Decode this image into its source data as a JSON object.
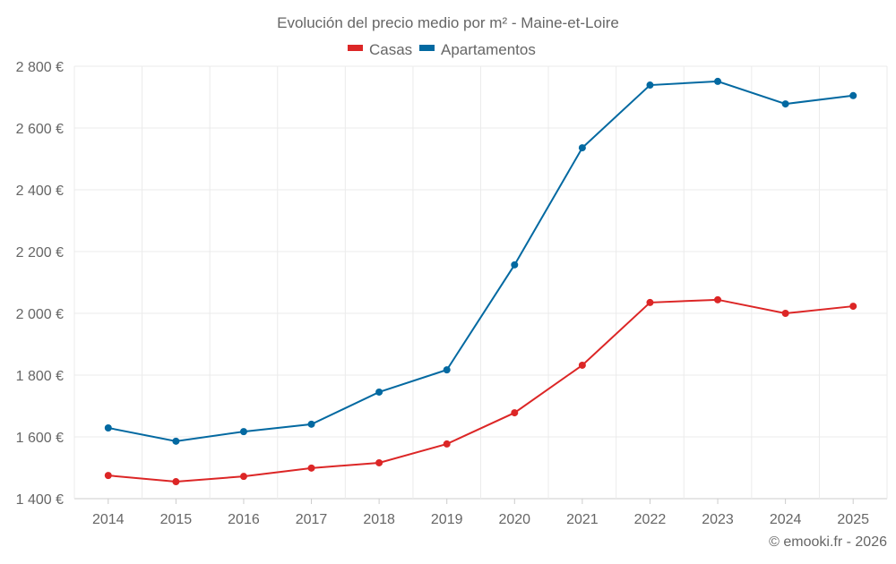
{
  "chart_data": {
    "type": "line",
    "title": "Evolución del precio medio por m² - Maine-et-Loire",
    "categories": [
      "2014",
      "2015",
      "2016",
      "2017",
      "2018",
      "2019",
      "2020",
      "2021",
      "2022",
      "2023",
      "2024",
      "2025"
    ],
    "series": [
      {
        "name": "Casas",
        "color": "#dc2626",
        "values": [
          1475,
          1455,
          1472,
          1499,
          1516,
          1577,
          1678,
          1832,
          2035,
          2044,
          2000,
          2023
        ]
      },
      {
        "name": "Apartamentos",
        "color": "#0369a1",
        "values": [
          1629,
          1586,
          1617,
          1641,
          1745,
          1817,
          2157,
          2536,
          2739,
          2751,
          2678,
          2705
        ]
      }
    ],
    "ylim": [
      1400,
      2800
    ],
    "yticks": [
      1400,
      1600,
      1800,
      2000,
      2200,
      2400,
      2600,
      2800
    ],
    "ytick_labels": [
      "1 400 €",
      "1 600 €",
      "1 800 €",
      "2 000 €",
      "2 200 €",
      "2 400 €",
      "2 600 €",
      "2 800 €"
    ],
    "grid": true,
    "legend": "top-center",
    "xlabel": "",
    "ylabel": ""
  },
  "credit": "© emooki.fr - 2026"
}
